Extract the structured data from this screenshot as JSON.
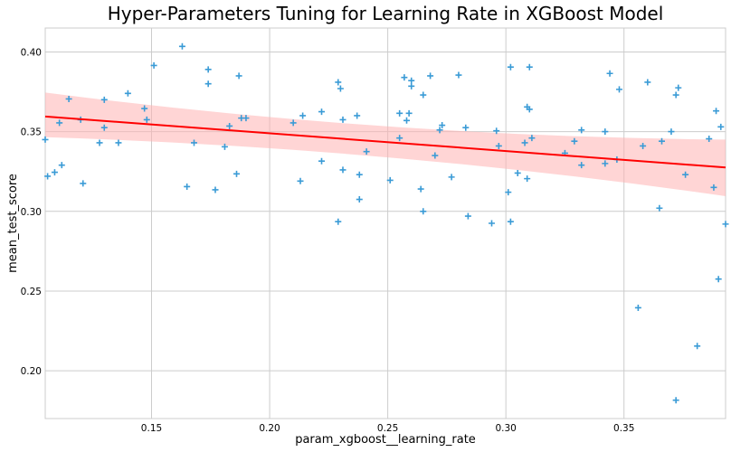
{
  "chart_data": {
    "type": "scatter",
    "title": "Hyper-Parameters Tuning for Learning Rate in XGBoost Model",
    "xlabel": "param_xgboost__learning_rate",
    "ylabel": "mean_test_score",
    "xlim": [
      0.105,
      0.393
    ],
    "ylim": [
      0.17,
      0.415
    ],
    "xticks": [
      0.15,
      0.2,
      0.25,
      0.3,
      0.35
    ],
    "xtick_labels": [
      "0.15",
      "0.20",
      "0.25",
      "0.30",
      "0.35"
    ],
    "yticks": [
      0.2,
      0.25,
      0.3,
      0.35,
      0.4
    ],
    "ytick_labels": [
      "0.20",
      "0.25",
      "0.30",
      "0.35",
      "0.40"
    ],
    "grid": true,
    "marker": "+",
    "colors": {
      "points": "#3a9bd6",
      "fit_line": "#ff0000",
      "ci_band": "#ffb3b3"
    },
    "regression": {
      "x": [
        0.105,
        0.393
      ],
      "y": [
        0.3595,
        0.3275
      ],
      "ci_upper": [
        0.3745,
        0.345
      ],
      "ci_lower": [
        0.3465,
        0.3095
      ],
      "ci_control_x": 0.25
    },
    "points": [
      [
        0.105,
        0.345
      ],
      [
        0.106,
        0.322
      ],
      [
        0.109,
        0.3245
      ],
      [
        0.111,
        0.3555
      ],
      [
        0.112,
        0.329
      ],
      [
        0.115,
        0.3705
      ],
      [
        0.12,
        0.3575
      ],
      [
        0.121,
        0.3175
      ],
      [
        0.128,
        0.343
      ],
      [
        0.13,
        0.3525
      ],
      [
        0.13,
        0.37
      ],
      [
        0.136,
        0.343
      ],
      [
        0.14,
        0.374
      ],
      [
        0.147,
        0.3645
      ],
      [
        0.148,
        0.3575
      ],
      [
        0.151,
        0.3915
      ],
      [
        0.163,
        0.4035
      ],
      [
        0.165,
        0.3155
      ],
      [
        0.168,
        0.343
      ],
      [
        0.174,
        0.389
      ],
      [
        0.174,
        0.38
      ],
      [
        0.177,
        0.3135
      ],
      [
        0.181,
        0.3405
      ],
      [
        0.183,
        0.3535
      ],
      [
        0.186,
        0.3235
      ],
      [
        0.187,
        0.385
      ],
      [
        0.188,
        0.3585
      ],
      [
        0.19,
        0.3585
      ],
      [
        0.21,
        0.3555
      ],
      [
        0.213,
        0.319
      ],
      [
        0.214,
        0.36
      ],
      [
        0.222,
        0.3625
      ],
      [
        0.222,
        0.3315
      ],
      [
        0.229,
        0.381
      ],
      [
        0.229,
        0.2935
      ],
      [
        0.23,
        0.377
      ],
      [
        0.231,
        0.3575
      ],
      [
        0.231,
        0.326
      ],
      [
        0.237,
        0.36
      ],
      [
        0.238,
        0.323
      ],
      [
        0.238,
        0.3075
      ],
      [
        0.241,
        0.3375
      ],
      [
        0.251,
        0.3195
      ],
      [
        0.255,
        0.346
      ],
      [
        0.255,
        0.3615
      ],
      [
        0.257,
        0.384
      ],
      [
        0.258,
        0.357
      ],
      [
        0.259,
        0.3615
      ],
      [
        0.26,
        0.382
      ],
      [
        0.26,
        0.3785
      ],
      [
        0.264,
        0.314
      ],
      [
        0.265,
        0.3
      ],
      [
        0.265,
        0.373
      ],
      [
        0.268,
        0.385
      ],
      [
        0.27,
        0.335
      ],
      [
        0.272,
        0.351
      ],
      [
        0.273,
        0.354
      ],
      [
        0.277,
        0.3215
      ],
      [
        0.28,
        0.3855
      ],
      [
        0.283,
        0.3525
      ],
      [
        0.284,
        0.297
      ],
      [
        0.294,
        0.2925
      ],
      [
        0.296,
        0.3505
      ],
      [
        0.297,
        0.341
      ],
      [
        0.301,
        0.312
      ],
      [
        0.302,
        0.3905
      ],
      [
        0.302,
        0.2935
      ],
      [
        0.305,
        0.324
      ],
      [
        0.308,
        0.343
      ],
      [
        0.309,
        0.3205
      ],
      [
        0.309,
        0.3655
      ],
      [
        0.31,
        0.364
      ],
      [
        0.31,
        0.3905
      ],
      [
        0.311,
        0.346
      ],
      [
        0.325,
        0.3365
      ],
      [
        0.329,
        0.344
      ],
      [
        0.332,
        0.329
      ],
      [
        0.332,
        0.351
      ],
      [
        0.342,
        0.33
      ],
      [
        0.342,
        0.35
      ],
      [
        0.344,
        0.3865
      ],
      [
        0.347,
        0.3325
      ],
      [
        0.348,
        0.3765
      ],
      [
        0.356,
        0.2395
      ],
      [
        0.358,
        0.341
      ],
      [
        0.36,
        0.381
      ],
      [
        0.365,
        0.302
      ],
      [
        0.366,
        0.344
      ],
      [
        0.37,
        0.35
      ],
      [
        0.372,
        0.1815
      ],
      [
        0.372,
        0.373
      ],
      [
        0.373,
        0.3775
      ],
      [
        0.376,
        0.323
      ],
      [
        0.381,
        0.2155
      ],
      [
        0.386,
        0.3455
      ],
      [
        0.388,
        0.315
      ],
      [
        0.389,
        0.363
      ],
      [
        0.39,
        0.2575
      ],
      [
        0.391,
        0.353
      ],
      [
        0.393,
        0.292
      ]
    ]
  }
}
